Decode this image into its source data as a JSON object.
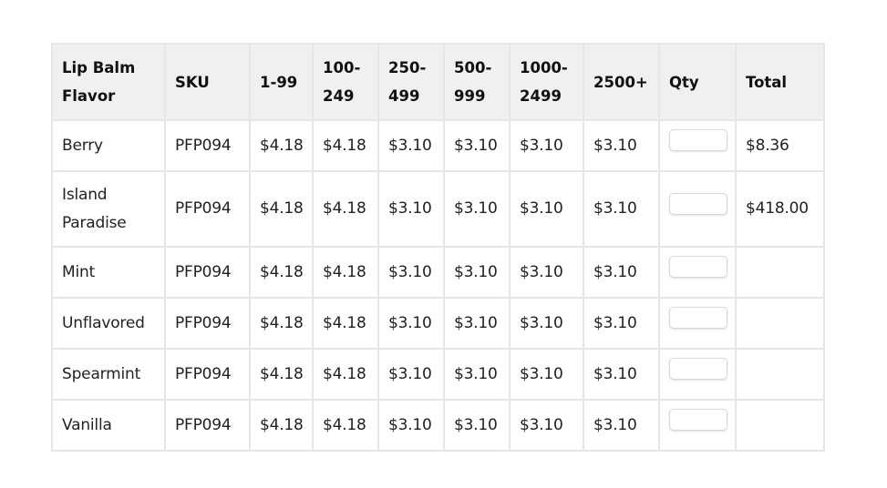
{
  "table": {
    "headers": {
      "flavor": "Lip Balm Flavor",
      "sku": "SKU",
      "tier1": "1-99",
      "tier2": "100-249",
      "tier3": "250-499",
      "tier4": "500-999",
      "tier5": "1000-2499",
      "tier6": "2500+",
      "qty": "Qty",
      "total": "Total"
    },
    "rows": [
      {
        "flavor": "Berry",
        "sku": "PFP094",
        "tier1": "$4.18",
        "tier2": "$4.18",
        "tier3": "$3.10",
        "tier4": "$3.10",
        "tier5": "$3.10",
        "tier6": "$3.10",
        "qty": "",
        "total": "$8.36"
      },
      {
        "flavor": "Island Paradise",
        "sku": "PFP094",
        "tier1": "$4.18",
        "tier2": "$4.18",
        "tier3": "$3.10",
        "tier4": "$3.10",
        "tier5": "$3.10",
        "tier6": "$3.10",
        "qty": "",
        "total": "$418.00"
      },
      {
        "flavor": "Mint",
        "sku": "PFP094",
        "tier1": "$4.18",
        "tier2": "$4.18",
        "tier3": "$3.10",
        "tier4": "$3.10",
        "tier5": "$3.10",
        "tier6": "$3.10",
        "qty": "",
        "total": ""
      },
      {
        "flavor": "Unflavored",
        "sku": "PFP094",
        "tier1": "$4.18",
        "tier2": "$4.18",
        "tier3": "$3.10",
        "tier4": "$3.10",
        "tier5": "$3.10",
        "tier6": "$3.10",
        "qty": "",
        "total": ""
      },
      {
        "flavor": "Spearmint",
        "sku": "PFP094",
        "tier1": "$4.18",
        "tier2": "$4.18",
        "tier3": "$3.10",
        "tier4": "$3.10",
        "tier5": "$3.10",
        "tier6": "$3.10",
        "qty": "",
        "total": ""
      },
      {
        "flavor": "Vanilla",
        "sku": "PFP094",
        "tier1": "$4.18",
        "tier2": "$4.18",
        "tier3": "$3.10",
        "tier4": "$3.10",
        "tier5": "$3.10",
        "tier6": "$3.10",
        "qty": "",
        "total": ""
      }
    ]
  }
}
